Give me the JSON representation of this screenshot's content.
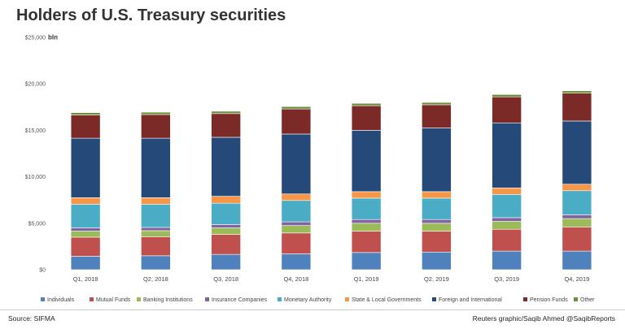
{
  "header": {
    "title": "Holders of U.S. Treasury securities"
  },
  "footer": {
    "source": "Source: SIFMA",
    "credit": "Reuters graphic/Saqib Ahmed @SaqibReports"
  },
  "chart_data": {
    "type": "bar",
    "stacked": true,
    "title": "Holders of U.S. Treasury securities",
    "xlabel": "",
    "ylabel": "bln",
    "ylim": [
      0,
      25000
    ],
    "yticks": [
      {
        "value": 0,
        "label": "$0"
      },
      {
        "value": 5000,
        "label": "$5,000"
      },
      {
        "value": 10000,
        "label": "$10,000"
      },
      {
        "value": 15000,
        "label": "$15,000"
      },
      {
        "value": 20000,
        "label": "$20,000"
      },
      {
        "value": 25000,
        "label": "$25,000"
      }
    ],
    "grid": false,
    "legend_position": "bottom",
    "categories": [
      "Q1, 2018",
      "Q2, 2018",
      "Q3, 2018",
      "Q4, 2018",
      "Q1, 2019",
      "Q2, 2019",
      "Q3, 2019",
      "Q4, 2019"
    ],
    "series": [
      {
        "name": "Individuals",
        "color": "#4f81bd",
        "values": [
          1450,
          1500,
          1650,
          1700,
          1850,
          1900,
          2000,
          2000
        ]
      },
      {
        "name": "Mutual Funds",
        "color": "#c0504d",
        "values": [
          2050,
          2050,
          2150,
          2250,
          2300,
          2250,
          2350,
          2600
        ]
      },
      {
        "name": "Banking Institutions",
        "color": "#9bbb59",
        "values": [
          650,
          650,
          700,
          800,
          850,
          850,
          850,
          900
        ]
      },
      {
        "name": "Insurance Companies",
        "color": "#8064a2",
        "values": [
          350,
          350,
          350,
          400,
          400,
          400,
          400,
          400
        ]
      },
      {
        "name": "Monetary Authority",
        "color": "#4bacc6",
        "values": [
          2550,
          2500,
          2300,
          2300,
          2300,
          2300,
          2500,
          2600
        ]
      },
      {
        "name": "State & Local Governments",
        "color": "#f79646",
        "values": [
          700,
          700,
          750,
          700,
          700,
          700,
          700,
          700
        ]
      },
      {
        "name": "Foreign and International",
        "color": "#254a7a",
        "values": [
          6400,
          6400,
          6350,
          6450,
          6600,
          6850,
          7000,
          6800
        ]
      },
      {
        "name": "Pension Funds",
        "color": "#7b2a27",
        "values": [
          2500,
          2550,
          2550,
          2700,
          2650,
          2500,
          2800,
          3000
        ]
      },
      {
        "name": "Other",
        "color": "#6b8e3a",
        "values": [
          250,
          250,
          250,
          250,
          250,
          250,
          250,
          250
        ]
      }
    ]
  }
}
